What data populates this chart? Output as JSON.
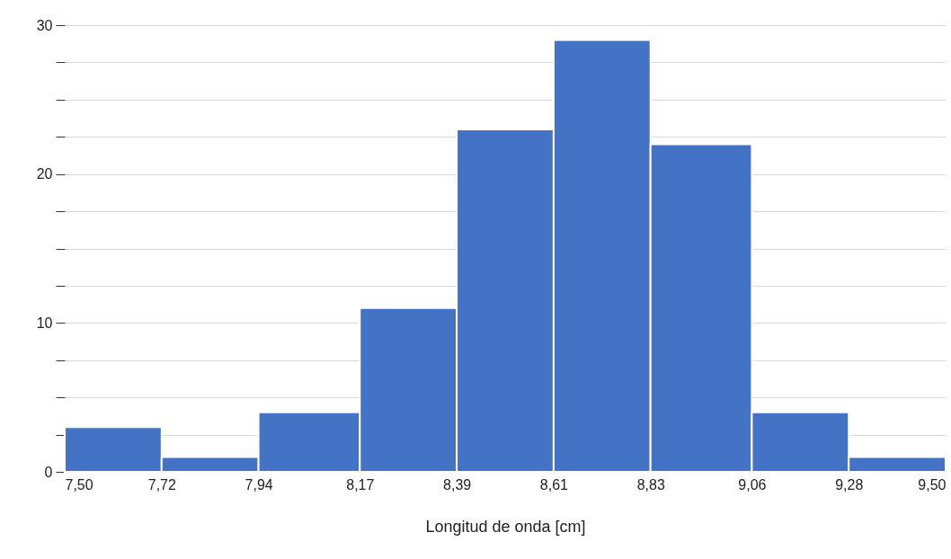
{
  "chart_data": {
    "type": "histogram",
    "xlabel": "Longitud de onda  [cm]",
    "bins": [
      7.5,
      7.72,
      7.94,
      8.17,
      8.39,
      8.61,
      8.83,
      9.06,
      9.28,
      9.5
    ],
    "values": [
      3,
      1,
      4,
      11,
      23,
      29,
      22,
      4,
      1
    ],
    "color": "#4472c4",
    "xlim": [
      7.5,
      9.5
    ],
    "xticks": [
      {
        "value": 7.5,
        "label": "7,50"
      },
      {
        "value": 7.72,
        "label": "7,72"
      },
      {
        "value": 7.94,
        "label": "7,94"
      },
      {
        "value": 8.17,
        "label": "8,17"
      },
      {
        "value": 8.39,
        "label": "8,39"
      },
      {
        "value": 8.61,
        "label": "8,61"
      },
      {
        "value": 8.83,
        "label": "8,83"
      },
      {
        "value": 9.06,
        "label": "9,06"
      },
      {
        "value": 9.28,
        "label": "9,28"
      },
      {
        "value": 9.5,
        "label": "9,50"
      }
    ],
    "ylim": [
      0,
      30
    ],
    "yticks": [
      0,
      {
        "value": 2.5,
        "label": null
      },
      {
        "value": 5,
        "label": null
      },
      {
        "value": 7.5,
        "label": null
      },
      10,
      {
        "value": 12.5,
        "label": null
      },
      {
        "value": 15,
        "label": null
      },
      {
        "value": 17.5,
        "label": null
      },
      20,
      {
        "value": 22.5,
        "label": null
      },
      {
        "value": 25,
        "label": null
      },
      {
        "value": 27.5,
        "label": null
      },
      30
    ],
    "grid": "y"
  }
}
